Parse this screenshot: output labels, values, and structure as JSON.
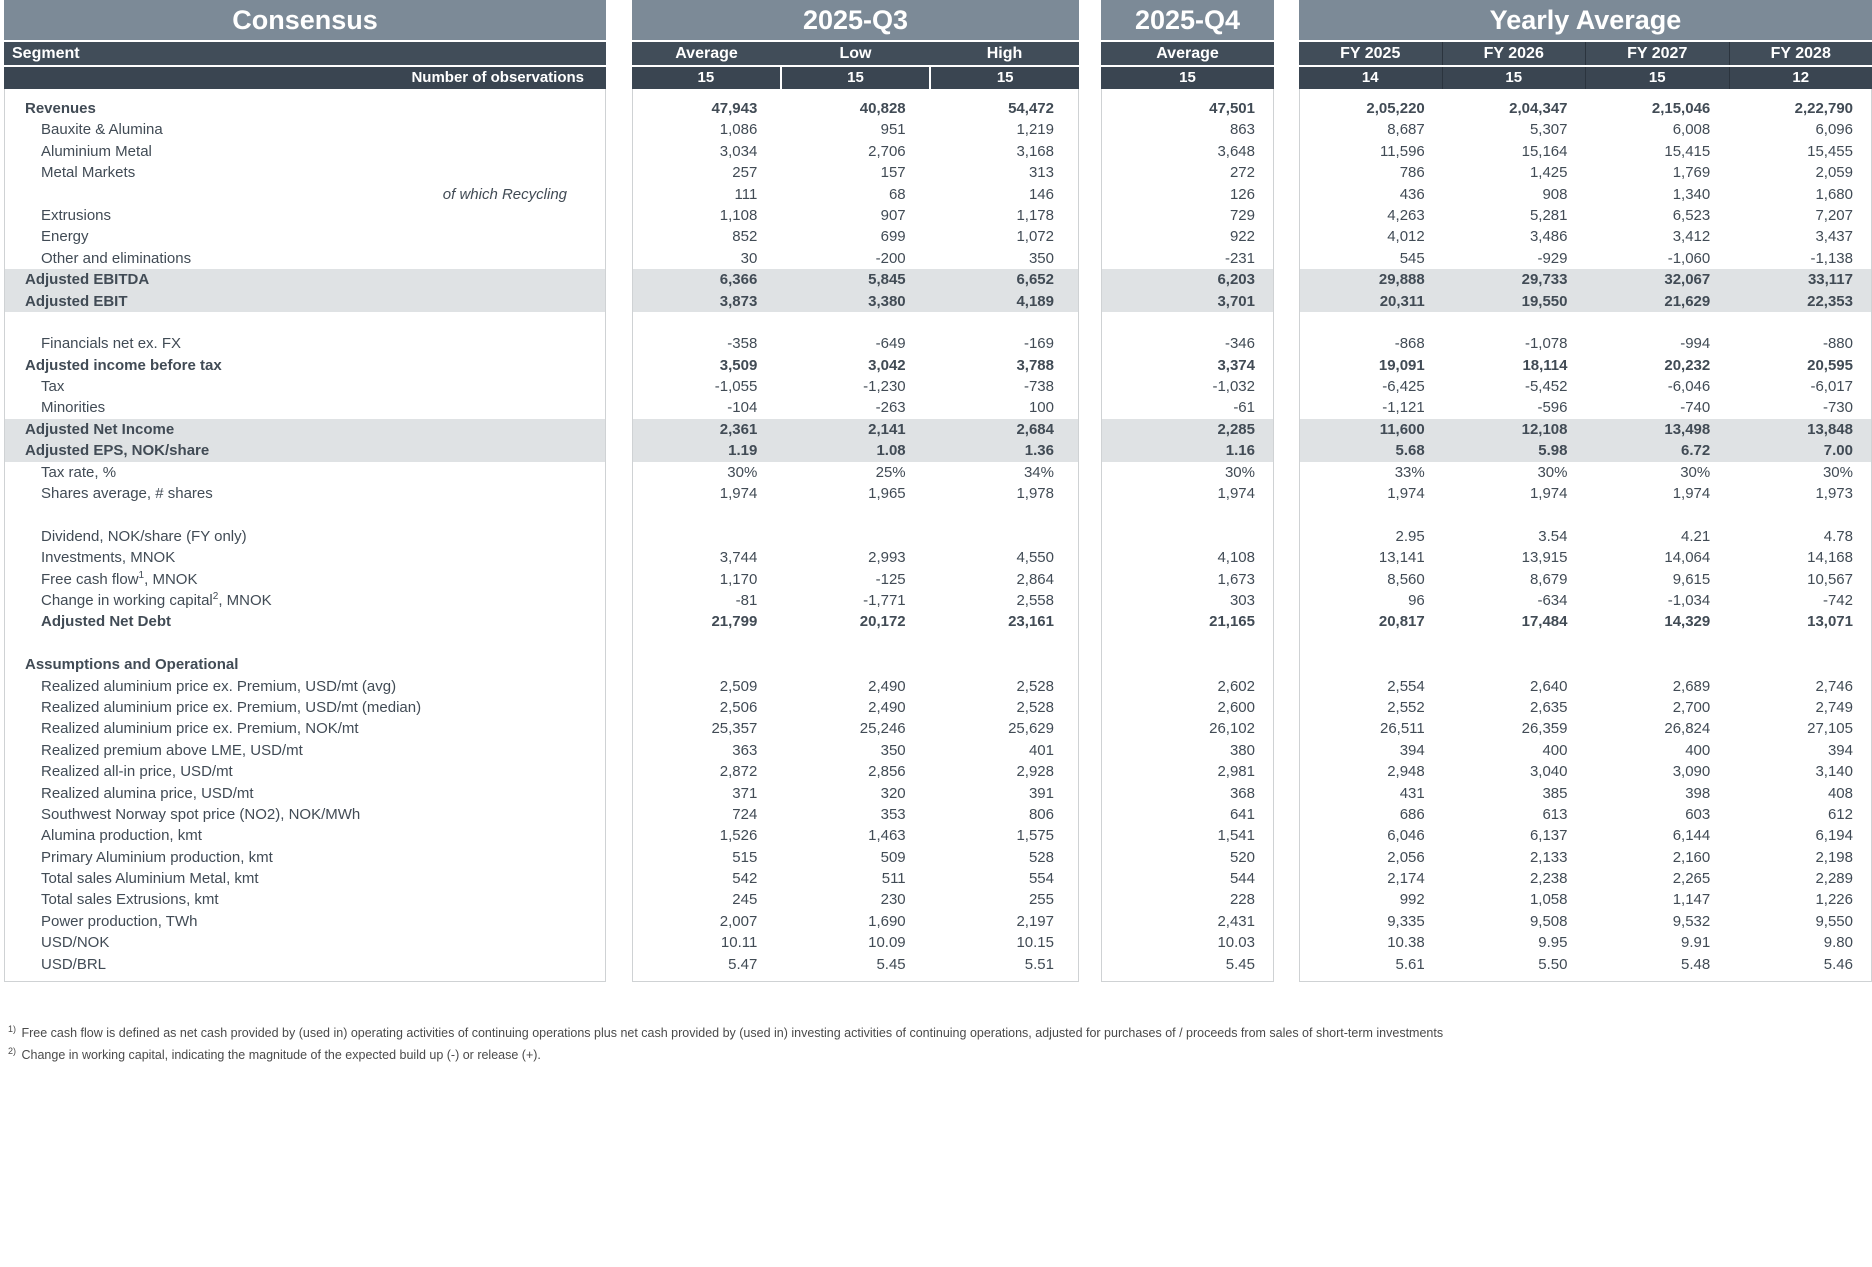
{
  "colors": {
    "title_band": "#7C8A97",
    "header_band": "#414D59",
    "observations_band": "#3A4551",
    "highlight_row": "#DFE2E4",
    "body_text": "#414B55"
  },
  "header": {
    "consensus_title": "Consensus",
    "segment_label": "Segment",
    "observations_label": "Number of observations",
    "q3": {
      "title": "2025-Q3",
      "columns": [
        "Average",
        "Low",
        "High"
      ],
      "observations": [
        "15",
        "15",
        "15"
      ]
    },
    "q4": {
      "title": "2025-Q4",
      "columns": [
        "Average"
      ],
      "observations": [
        "15"
      ]
    },
    "yearly": {
      "title": "Yearly Average",
      "columns": [
        "FY 2025",
        "FY 2026",
        "FY 2027",
        "FY 2028"
      ],
      "observations": [
        "14",
        "15",
        "15",
        "12"
      ]
    }
  },
  "rows": [
    {
      "label": "Revenues",
      "bold": true,
      "indent": 0,
      "q3": [
        "47,943",
        "40,828",
        "54,472"
      ],
      "q4": "47,501",
      "fy": [
        "2,05,220",
        "2,04,347",
        "2,15,046",
        "2,22,790"
      ]
    },
    {
      "label": "Bauxite & Alumina",
      "indent": 1,
      "q3": [
        "1,086",
        "951",
        "1,219"
      ],
      "q4": "863",
      "fy": [
        "8,687",
        "5,307",
        "6,008",
        "6,096"
      ]
    },
    {
      "label": "Aluminium Metal",
      "indent": 1,
      "q3": [
        "3,034",
        "2,706",
        "3,168"
      ],
      "q4": "3,648",
      "fy": [
        "11,596",
        "15,164",
        "15,415",
        "15,455"
      ]
    },
    {
      "label": "Metal Markets",
      "indent": 1,
      "q3": [
        "257",
        "157",
        "313"
      ],
      "q4": "272",
      "fy": [
        "786",
        "1,425",
        "1,769",
        "2,059"
      ]
    },
    {
      "label": "of which Recycling",
      "italicRight": true,
      "q3": [
        "111",
        "68",
        "146"
      ],
      "q4": "126",
      "fy": [
        "436",
        "908",
        "1,340",
        "1,680"
      ]
    },
    {
      "label": "Extrusions",
      "indent": 1,
      "q3": [
        "1,108",
        "907",
        "1,178"
      ],
      "q4": "729",
      "fy": [
        "4,263",
        "5,281",
        "6,523",
        "7,207"
      ]
    },
    {
      "label": "Energy",
      "indent": 1,
      "q3": [
        "852",
        "699",
        "1,072"
      ],
      "q4": "922",
      "fy": [
        "4,012",
        "3,486",
        "3,412",
        "3,437"
      ]
    },
    {
      "label": "Other and eliminations",
      "indent": 1,
      "q3": [
        "30",
        "-200",
        "350"
      ],
      "q4": "-231",
      "fy": [
        "545",
        "-929",
        "-1,060",
        "-1,138"
      ]
    },
    {
      "label": "Adjusted EBITDA",
      "bold": true,
      "indent": 0,
      "highlight": true,
      "q3": [
        "6,366",
        "5,845",
        "6,652"
      ],
      "q4": "6,203",
      "fy": [
        "29,888",
        "29,733",
        "32,067",
        "33,117"
      ]
    },
    {
      "label": "Adjusted EBIT",
      "bold": true,
      "indent": 0,
      "highlight": true,
      "q3": [
        "3,873",
        "3,380",
        "4,189"
      ],
      "q4": "3,701",
      "fy": [
        "20,311",
        "19,550",
        "21,629",
        "22,353"
      ]
    },
    {
      "blank": true
    },
    {
      "label": "Financials net ex. FX",
      "indent": 1,
      "q3": [
        "-358",
        "-649",
        "-169"
      ],
      "q4": "-346",
      "fy": [
        "-868",
        "-1,078",
        "-994",
        "-880"
      ]
    },
    {
      "label": "Adjusted income before tax",
      "bold": true,
      "indent": 0,
      "q3": [
        "3,509",
        "3,042",
        "3,788"
      ],
      "q4": "3,374",
      "fy": [
        "19,091",
        "18,114",
        "20,232",
        "20,595"
      ]
    },
    {
      "label": "Tax",
      "indent": 1,
      "q3": [
        "-1,055",
        "-1,230",
        "-738"
      ],
      "q4": "-1,032",
      "fy": [
        "-6,425",
        "-5,452",
        "-6,046",
        "-6,017"
      ]
    },
    {
      "label": "Minorities",
      "indent": 1,
      "q3": [
        "-104",
        "-263",
        "100"
      ],
      "q4": "-61",
      "fy": [
        "-1,121",
        "-596",
        "-740",
        "-730"
      ]
    },
    {
      "label": "Adjusted Net Income",
      "bold": true,
      "indent": 0,
      "highlight": true,
      "q3": [
        "2,361",
        "2,141",
        "2,684"
      ],
      "q4": "2,285",
      "fy": [
        "11,600",
        "12,108",
        "13,498",
        "13,848"
      ]
    },
    {
      "label": "Adjusted EPS, NOK/share",
      "bold": true,
      "indent": 0,
      "highlight": true,
      "q3": [
        "1.19",
        "1.08",
        "1.36"
      ],
      "q4": "1.16",
      "fy": [
        "5.68",
        "5.98",
        "6.72",
        "7.00"
      ]
    },
    {
      "label": "Tax rate, %",
      "indent": 1,
      "q3": [
        "30%",
        "25%",
        "34%"
      ],
      "q4": "30%",
      "fy": [
        "33%",
        "30%",
        "30%",
        "30%"
      ]
    },
    {
      "label": "Shares average, # shares",
      "indent": 1,
      "q3": [
        "1,974",
        "1,965",
        "1,978"
      ],
      "q4": "1,974",
      "fy": [
        "1,974",
        "1,974",
        "1,974",
        "1,973"
      ]
    },
    {
      "blank": true
    },
    {
      "label": "Dividend, NOK/share (FY only)",
      "indent": 1,
      "q3": [
        "",
        "",
        ""
      ],
      "q4": "",
      "fy": [
        "2.95",
        "3.54",
        "4.21",
        "4.78"
      ]
    },
    {
      "label": "Investments, MNOK",
      "indent": 1,
      "q3": [
        "3,744",
        "2,993",
        "4,550"
      ],
      "q4": "4,108",
      "fy": [
        "13,141",
        "13,915",
        "14,064",
        "14,168"
      ]
    },
    {
      "label": "Free cash flow",
      "sup": "1",
      "suffix": ", MNOK",
      "indent": 1,
      "q3": [
        "1,170",
        "-125",
        "2,864"
      ],
      "q4": "1,673",
      "fy": [
        "8,560",
        "8,679",
        "9,615",
        "10,567"
      ]
    },
    {
      "label": "Change in working capital",
      "sup": "2",
      "suffix": ", MNOK",
      "indent": 1,
      "q3": [
        "-81",
        "-1,771",
        "2,558"
      ],
      "q4": "303",
      "fy": [
        "96",
        "-634",
        "-1,034",
        "-742"
      ]
    },
    {
      "label": "Adjusted Net Debt",
      "bold": true,
      "indent": 1,
      "q3": [
        "21,799",
        "20,172",
        "23,161"
      ],
      "q4": "21,165",
      "fy": [
        "20,817",
        "17,484",
        "14,329",
        "13,071"
      ]
    },
    {
      "blank": true
    },
    {
      "label": "Assumptions and Operational",
      "bold": true,
      "indent": 0,
      "q3": [
        "",
        "",
        ""
      ],
      "q4": "",
      "fy": [
        "",
        "",
        "",
        ""
      ]
    },
    {
      "label": "Realized aluminium price ex. Premium, USD/mt (avg)",
      "indent": 1,
      "q3": [
        "2,509",
        "2,490",
        "2,528"
      ],
      "q4": "2,602",
      "fy": [
        "2,554",
        "2,640",
        "2,689",
        "2,746"
      ]
    },
    {
      "label": "Realized aluminium price ex. Premium, USD/mt (median)",
      "indent": 1,
      "q3": [
        "2,506",
        "2,490",
        "2,528"
      ],
      "q4": "2,600",
      "fy": [
        "2,552",
        "2,635",
        "2,700",
        "2,749"
      ]
    },
    {
      "label": "Realized aluminium price ex. Premium, NOK/mt",
      "indent": 1,
      "q3": [
        "25,357",
        "25,246",
        "25,629"
      ],
      "q4": "26,102",
      "fy": [
        "26,511",
        "26,359",
        "26,824",
        "27,105"
      ]
    },
    {
      "label": "Realized premium above LME, USD/mt",
      "indent": 1,
      "q3": [
        "363",
        "350",
        "401"
      ],
      "q4": "380",
      "fy": [
        "394",
        "400",
        "400",
        "394"
      ]
    },
    {
      "label": "Realized all-in price, USD/mt",
      "indent": 1,
      "q3": [
        "2,872",
        "2,856",
        "2,928"
      ],
      "q4": "2,981",
      "fy": [
        "2,948",
        "3,040",
        "3,090",
        "3,140"
      ]
    },
    {
      "label": "Realized alumina price, USD/mt",
      "indent": 1,
      "q3": [
        "371",
        "320",
        "391"
      ],
      "q4": "368",
      "fy": [
        "431",
        "385",
        "398",
        "408"
      ]
    },
    {
      "label": "Southwest Norway spot price (NO2), NOK/MWh",
      "indent": 1,
      "q3": [
        "724",
        "353",
        "806"
      ],
      "q4": "641",
      "fy": [
        "686",
        "613",
        "603",
        "612"
      ]
    },
    {
      "label": "Alumina production, kmt",
      "indent": 1,
      "q3": [
        "1,526",
        "1,463",
        "1,575"
      ],
      "q4": "1,541",
      "fy": [
        "6,046",
        "6,137",
        "6,144",
        "6,194"
      ]
    },
    {
      "label": "Primary Aluminium production, kmt",
      "indent": 1,
      "q3": [
        "515",
        "509",
        "528"
      ],
      "q4": "520",
      "fy": [
        "2,056",
        "2,133",
        "2,160",
        "2,198"
      ]
    },
    {
      "label": "Total sales Aluminium Metal, kmt",
      "indent": 1,
      "q3": [
        "542",
        "511",
        "554"
      ],
      "q4": "544",
      "fy": [
        "2,174",
        "2,238",
        "2,265",
        "2,289"
      ]
    },
    {
      "label": "Total sales Extrusions, kmt",
      "indent": 1,
      "q3": [
        "245",
        "230",
        "255"
      ],
      "q4": "228",
      "fy": [
        "992",
        "1,058",
        "1,147",
        "1,226"
      ]
    },
    {
      "label": "Power production, TWh",
      "indent": 1,
      "q3": [
        "2,007",
        "1,690",
        "2,197"
      ],
      "q4": "2,431",
      "fy": [
        "9,335",
        "9,508",
        "9,532",
        "9,550"
      ]
    },
    {
      "label": "USD/NOK",
      "indent": 1,
      "q3": [
        "10.11",
        "10.09",
        "10.15"
      ],
      "q4": "10.03",
      "fy": [
        "10.38",
        "9.95",
        "9.91",
        "9.80"
      ]
    },
    {
      "label": "USD/BRL",
      "indent": 1,
      "q3": [
        "5.47",
        "5.45",
        "5.51"
      ],
      "q4": "5.45",
      "fy": [
        "5.61",
        "5.50",
        "5.48",
        "5.46"
      ]
    }
  ],
  "footnotes": [
    {
      "marker": "1)",
      "text": "Free cash flow is defined as net cash provided by (used in) operating activities of continuing operations plus net cash provided by (used in) investing activities of continuing operations, adjusted for purchases of / proceeds from sales of short-term investments"
    },
    {
      "marker": "2)",
      "text": "Change in working capital, indicating the magnitude of the expected build up (-) or release (+)."
    }
  ]
}
